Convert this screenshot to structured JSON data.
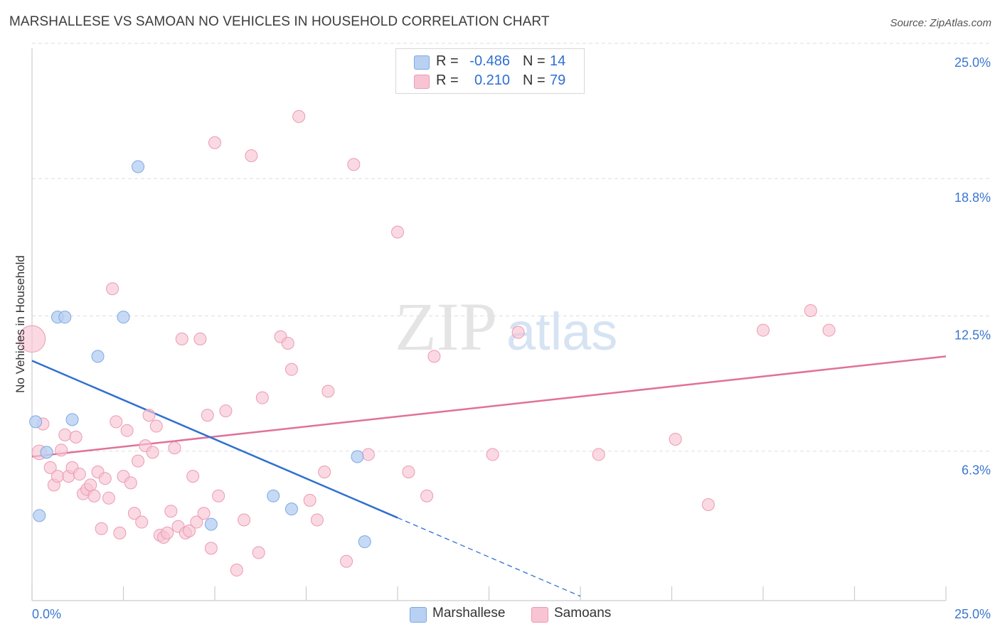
{
  "title": "MARSHALLESE VS SAMOAN NO VEHICLES IN HOUSEHOLD CORRELATION CHART",
  "source": "Source: ZipAtlas.com",
  "watermark": {
    "zip": "ZIP",
    "atlas": "atlas"
  },
  "legend": {
    "marshallese": {
      "r_label": "R =",
      "r_value": "-0.486",
      "n_label": "N =",
      "n_value": "14"
    },
    "samoans": {
      "r_label": "R =",
      "r_value": "0.210",
      "n_label": "N =",
      "n_value": "79"
    }
  },
  "bottom_legend": {
    "marshallese": "Marshallese",
    "samoans": "Samoans"
  },
  "colors": {
    "marshallese_fill": "#b8d1f3",
    "marshallese_stroke": "#7fa8e0",
    "marshallese_line": "#2f6fd1",
    "samoans_fill": "#f8c4d4",
    "samoans_stroke": "#eb9ab4",
    "samoans_line": "#e0719a",
    "tick_label": "#3b77cf",
    "grid": "#dddddd"
  },
  "chart_data": {
    "type": "scatter",
    "title": "MARSHALLESE VS SAMOAN NO VEHICLES IN HOUSEHOLD CORRELATION CHART",
    "xlabel": "",
    "ylabel": "No Vehicles in Household",
    "xlim": [
      0,
      25
    ],
    "ylim": [
      0,
      25
    ],
    "x_tick_labels": [
      "0.0%",
      "25.0%"
    ],
    "y_ticks": [
      6.3,
      12.5,
      18.8,
      25.0
    ],
    "y_tick_labels": [
      "6.3%",
      "12.5%",
      "18.8%",
      "25.0%"
    ],
    "grid": "horizontal dashed",
    "legend_position": "top-center",
    "series": [
      {
        "name": "Marshallese",
        "x": [
          0.1,
          0.4,
          0.7,
          0.9,
          1.1,
          1.8,
          2.5,
          2.9,
          4.9,
          6.6,
          7.1,
          8.9,
          9.1,
          0.2
        ],
        "y": [
          8.2,
          6.8,
          13.0,
          13.0,
          8.3,
          11.2,
          13.0,
          19.9,
          3.5,
          4.8,
          4.2,
          6.6,
          2.7,
          3.9
        ],
        "size": [
          1,
          1,
          1,
          1,
          1,
          1,
          1,
          1,
          1,
          1,
          1,
          1,
          1,
          1
        ],
        "trend": {
          "x0": 0,
          "y0": 11.0,
          "x1": 10.0,
          "y1": 3.8,
          "dashed_to_x": 15.0
        }
      },
      {
        "name": "Samoans",
        "x": [
          0.0,
          0.2,
          0.3,
          0.5,
          0.6,
          0.7,
          0.8,
          0.9,
          1.0,
          1.1,
          1.2,
          1.3,
          1.4,
          1.5,
          1.6,
          1.7,
          1.8,
          1.9,
          2.0,
          2.1,
          2.2,
          2.3,
          2.4,
          2.5,
          2.6,
          2.7,
          2.8,
          2.9,
          3.0,
          3.1,
          3.2,
          3.3,
          3.4,
          3.5,
          3.6,
          3.7,
          3.8,
          3.9,
          4.0,
          4.1,
          4.2,
          4.3,
          4.4,
          4.5,
          4.6,
          4.7,
          4.8,
          4.9,
          5.0,
          5.1,
          5.3,
          5.6,
          5.8,
          6.0,
          6.2,
          6.3,
          6.8,
          7.0,
          7.1,
          7.3,
          7.6,
          7.8,
          8.0,
          8.1,
          8.6,
          8.8,
          9.2,
          10.0,
          10.3,
          10.8,
          11.0,
          12.6,
          13.3,
          15.5,
          17.6,
          18.5,
          20.0,
          21.3,
          21.8
        ],
        "y": [
          12.0,
          6.8,
          8.1,
          6.1,
          5.3,
          5.7,
          6.9,
          7.6,
          5.7,
          6.1,
          7.5,
          5.8,
          4.9,
          5.1,
          5.3,
          4.8,
          5.9,
          3.3,
          5.6,
          4.7,
          14.3,
          8.2,
          3.1,
          5.7,
          7.8,
          5.4,
          4.0,
          6.4,
          3.6,
          7.1,
          8.5,
          6.8,
          8.0,
          3.0,
          2.9,
          3.1,
          4.1,
          7.0,
          3.4,
          12.0,
          3.1,
          3.2,
          5.7,
          3.6,
          12.0,
          4.0,
          8.5,
          2.4,
          21.0,
          4.8,
          8.7,
          1.4,
          3.7,
          20.4,
          2.2,
          9.3,
          12.1,
          11.8,
          10.6,
          22.2,
          4.6,
          3.7,
          5.9,
          9.6,
          1.8,
          20.0,
          6.7,
          16.9,
          5.9,
          4.8,
          11.2,
          6.7,
          12.3,
          6.7,
          7.4,
          4.4,
          12.4,
          13.3,
          12.4
        ],
        "size": [
          2.2,
          1.2,
          1,
          1,
          1,
          1,
          1,
          1,
          1,
          1,
          1,
          1,
          1,
          1,
          1,
          1,
          1,
          1,
          1,
          1,
          1,
          1,
          1,
          1,
          1,
          1,
          1,
          1,
          1,
          1,
          1,
          1,
          1,
          1,
          1,
          1,
          1,
          1,
          1,
          1,
          1,
          1,
          1,
          1,
          1,
          1,
          1,
          1,
          1,
          1,
          1,
          1,
          1,
          1,
          1,
          1,
          1,
          1,
          1,
          1,
          1,
          1,
          1,
          1,
          1,
          1,
          1,
          1,
          1,
          1,
          1,
          1,
          1,
          1,
          1,
          1,
          1,
          1,
          1
        ],
        "trend": {
          "x0": 0,
          "y0": 6.6,
          "x1": 25.0,
          "y1": 11.2
        }
      }
    ]
  }
}
